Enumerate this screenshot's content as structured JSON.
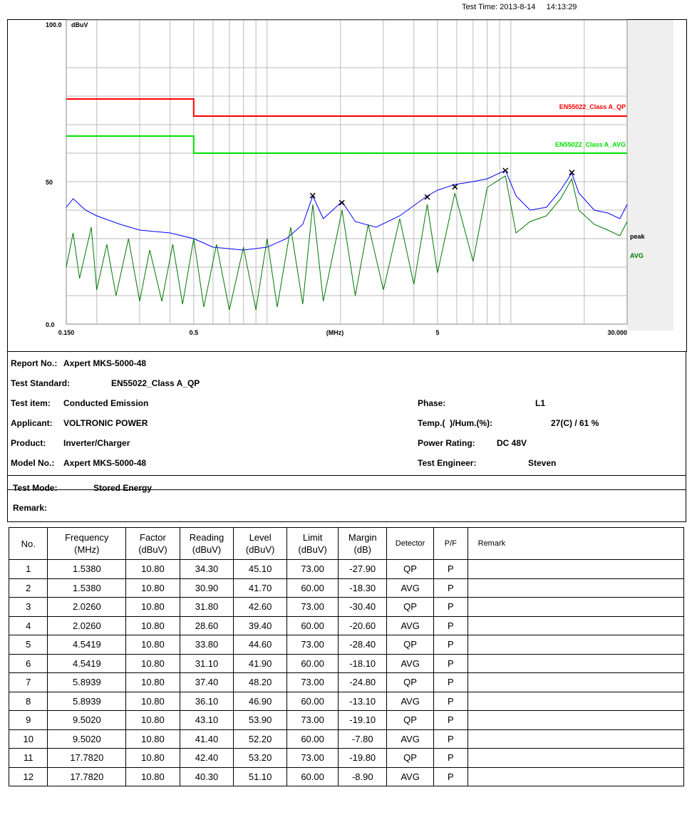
{
  "test_time": "Test Time: 2013-8-14     14:13:29",
  "chart_data": {
    "type": "line",
    "y_unit": "dBuV",
    "x_label": "(MHz)",
    "xlog": true,
    "xlim": [
      0.15,
      30
    ],
    "ylim": [
      0,
      100
    ],
    "xticks": [
      {
        "value": 0.15,
        "label": "0.150"
      },
      0.5,
      5,
      {
        "value": 30,
        "label": "30.000"
      }
    ],
    "yticks": [
      {
        "value": 100,
        "label": "100.0"
      },
      50,
      {
        "value": 0,
        "label": "0.0"
      }
    ],
    "xgrid": [
      0.2,
      0.3,
      0.4,
      0.5,
      0.6,
      0.7,
      0.8,
      0.9,
      1,
      2,
      3,
      4,
      5,
      6,
      7,
      8,
      9,
      10,
      20
    ],
    "ygrid": [
      10,
      20,
      30,
      40,
      50,
      60,
      70,
      80,
      90
    ],
    "series": [
      {
        "name": "EN55022_Class A_QP",
        "color": "#ff0000",
        "x": [
          0.15,
          0.5,
          0.5,
          30
        ],
        "values": [
          79,
          79,
          73,
          73
        ]
      },
      {
        "name": "EN55022_Class A_AVG",
        "color": "#00e000",
        "x": [
          0.15,
          0.5,
          0.5,
          30
        ],
        "values": [
          66,
          66,
          60,
          60
        ]
      },
      {
        "name": "peak",
        "color": "#0000ff",
        "x": [
          0.15,
          0.16,
          0.18,
          0.2,
          0.25,
          0.3,
          0.4,
          0.5,
          0.6,
          0.8,
          1.0,
          1.2,
          1.4,
          1.54,
          1.7,
          2.03,
          2.3,
          2.8,
          3.5,
          4.54,
          5.0,
          5.89,
          7,
          8,
          9.5,
          10.5,
          12,
          14,
          16,
          17.78,
          19,
          22,
          25,
          28,
          30
        ],
        "values": [
          41,
          44,
          40,
          38,
          35,
          33,
          32,
          30,
          27,
          26,
          27,
          30,
          35,
          45,
          37,
          43,
          36,
          34,
          38,
          45,
          47,
          49,
          50,
          51,
          54,
          45,
          40,
          41,
          47,
          53,
          46,
          40,
          39,
          37,
          42
        ]
      },
      {
        "name": "AVG",
        "color": "#007700",
        "x": [
          0.15,
          0.16,
          0.17,
          0.19,
          0.2,
          0.22,
          0.24,
          0.27,
          0.3,
          0.33,
          0.37,
          0.41,
          0.45,
          0.5,
          0.55,
          0.62,
          0.7,
          0.8,
          0.9,
          1.0,
          1.1,
          1.25,
          1.4,
          1.54,
          1.7,
          2.03,
          2.3,
          2.6,
          3.0,
          3.5,
          4.0,
          4.54,
          5.0,
          5.89,
          7.0,
          8.0,
          9.5,
          10.5,
          12,
          14,
          16,
          17.78,
          19,
          22,
          25,
          28,
          30
        ],
        "values": [
          20,
          32,
          16,
          34,
          12,
          28,
          10,
          30,
          8,
          26,
          8,
          28,
          7,
          30,
          6,
          28,
          5,
          27,
          5,
          30,
          6,
          34,
          7,
          42,
          8,
          40,
          10,
          35,
          12,
          37,
          14,
          42,
          18,
          46,
          22,
          48,
          52,
          32,
          36,
          38,
          44,
          51,
          40,
          35,
          33,
          31,
          36
        ]
      }
    ],
    "markers": {
      "x": [
        1.538,
        2.026,
        4.5419,
        5.8939,
        9.502,
        17.782
      ],
      "values": [
        45.1,
        42.6,
        44.6,
        48.2,
        53.9,
        53.2
      ]
    }
  },
  "info": {
    "left": [
      [
        "Report No.:",
        "Axpert MKS-5000-48"
      ],
      [
        "Test Standard:",
        "EN55022_Class A_QP"
      ],
      [
        "Test item:",
        "Conducted Emission"
      ],
      [
        "Applicant:",
        "VOLTRONIC POWER"
      ],
      [
        "Product:",
        "Inverter/Charger"
      ],
      [
        "Model No.:",
        "Axpert MKS-5000-48"
      ]
    ],
    "right": [
      [
        "Phase:",
        "L1"
      ],
      [
        "Temp.(  )/Hum.(%):",
        "27(C) / 61 %"
      ],
      [
        "Power Rating:",
        "DC 48V"
      ],
      [
        "Test Engineer:",
        "Steven"
      ]
    ]
  },
  "mode": {
    "label": "Test Mode:",
    "value": "Stored Energy",
    "remark": "Remark:"
  },
  "table": {
    "header": [
      "No.",
      "Frequency\n(MHz)",
      "Factor\n(dBuV)",
      "Reading\n(dBuV)",
      "Level\n(dBuV)",
      "Limit\n(dBuV)",
      "Margin\n(dB)",
      "Detector",
      "P/F",
      "Remark"
    ],
    "rows": [
      [
        "1",
        "1.5380",
        "10.80",
        "34.30",
        "45.10",
        "73.00",
        "-27.90",
        "QP",
        "P"
      ],
      [
        "2",
        "1.5380",
        "10.80",
        "30.90",
        "41.70",
        "60.00",
        "-18.30",
        "AVG",
        "P"
      ],
      [
        "3",
        "2.0260",
        "10.80",
        "31.80",
        "42.60",
        "73.00",
        "-30.40",
        "QP",
        "P"
      ],
      [
        "4",
        "2.0260",
        "10.80",
        "28.60",
        "39.40",
        "60.00",
        "-20.60",
        "AVG",
        "P"
      ],
      [
        "5",
        "4.5419",
        "10.80",
        "33.80",
        "44.60",
        "73.00",
        "-28.40",
        "QP",
        "P"
      ],
      [
        "6",
        "4.5419",
        "10.80",
        "31.10",
        "41.90",
        "60.00",
        "-18.10",
        "AVG",
        "P"
      ],
      [
        "7",
        "5.8939",
        "10.80",
        "37.40",
        "48.20",
        "73.00",
        "-24.80",
        "QP",
        "P"
      ],
      [
        "8",
        "5.8939",
        "10.80",
        "36.10",
        "46.90",
        "60.00",
        "-13.10",
        "AVG",
        "P"
      ],
      [
        "9",
        "9.5020",
        "10.80",
        "43.10",
        "53.90",
        "73.00",
        "-19.10",
        "QP",
        "P"
      ],
      [
        "10",
        "9.5020",
        "10.80",
        "41.40",
        "52.20",
        "60.00",
        "-7.80",
        "AVG",
        "P"
      ],
      [
        "11",
        "17.7820",
        "10.80",
        "42.40",
        "53.20",
        "73.00",
        "-19.80",
        "QP",
        "P"
      ],
      [
        "12",
        "17.7820",
        "10.80",
        "40.30",
        "51.10",
        "60.00",
        "-8.90",
        "AVG",
        "P"
      ]
    ]
  }
}
